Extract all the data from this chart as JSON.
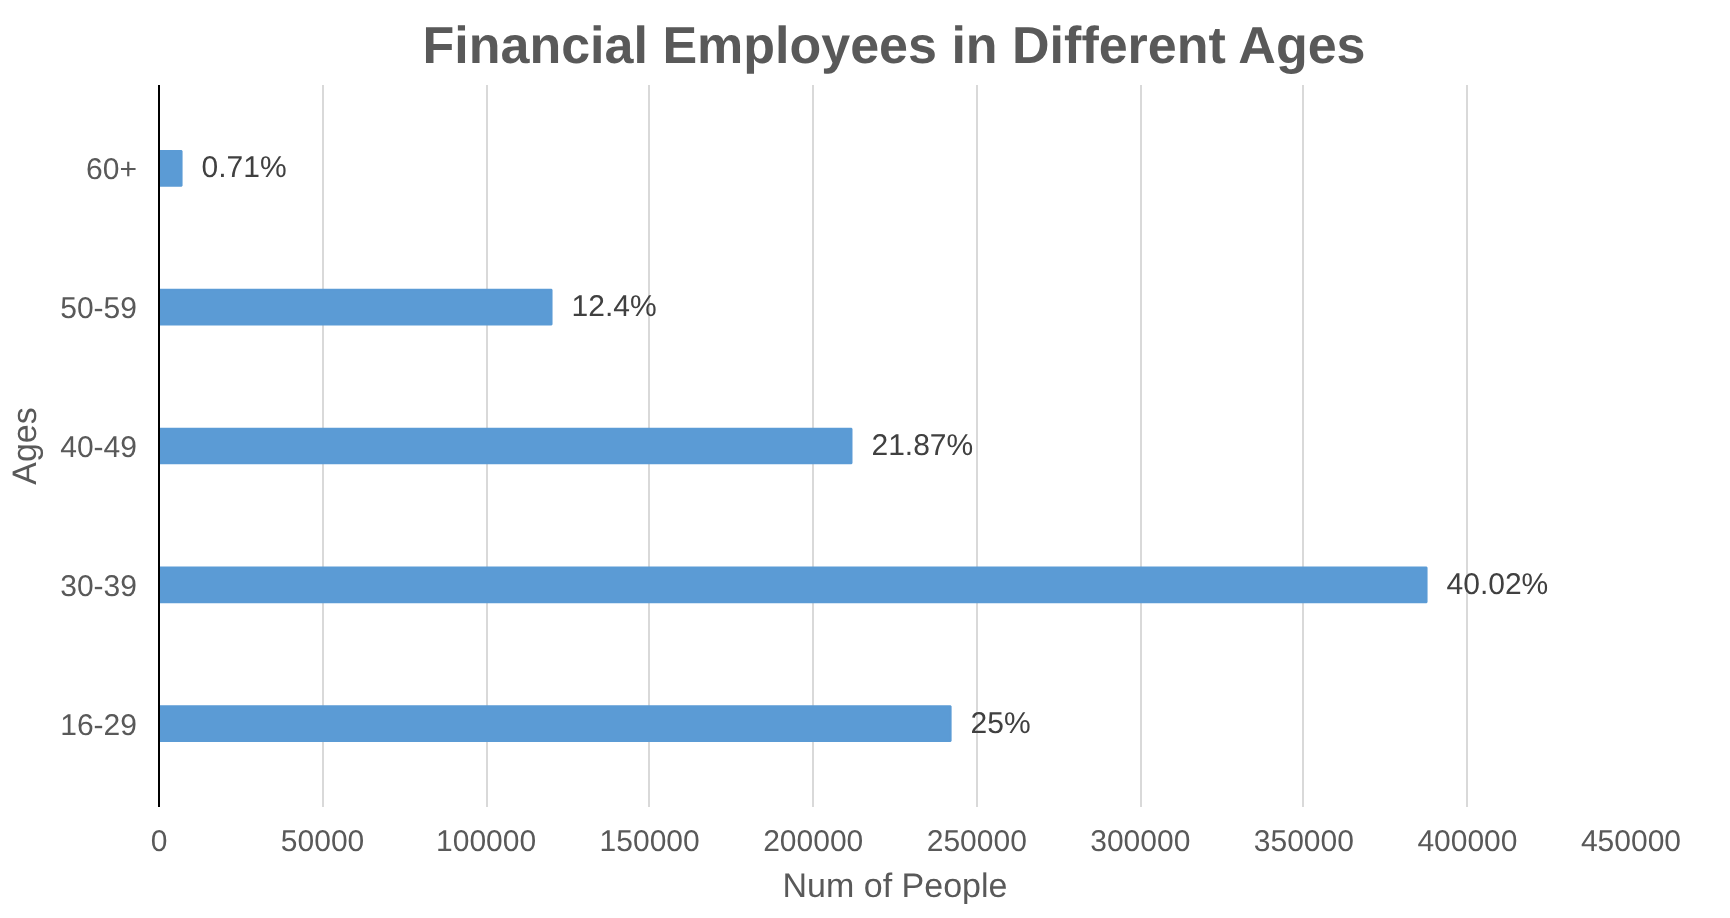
{
  "chart_data": {
    "type": "bar",
    "orientation": "horizontal",
    "title": "Financial Employees in Different Ages",
    "xlabel": "Num of People",
    "ylabel": "Ages",
    "categories": [
      "60+",
      "50-59",
      "40-49",
      "30-39",
      "16-29"
    ],
    "values": [
      6900,
      120000,
      211700,
      387500,
      242000
    ],
    "annotations": [
      {
        "text": "0.71%",
        "x": 6900,
        "y": "60+"
      },
      {
        "text": "12.4%",
        "x": 120000,
        "y": "50-59"
      },
      {
        "text": "21.87%",
        "x": 211700,
        "y": "40-49"
      },
      {
        "text": "40.02%",
        "x": 387500,
        "y": "30-39"
      },
      {
        "text": "25%",
        "x": 242000,
        "y": "16-29"
      }
    ],
    "color": "#5b9bd5",
    "xlim": [
      0,
      450000
    ],
    "xticks": [
      0,
      50000,
      100000,
      150000,
      200000,
      250000,
      300000,
      350000,
      400000,
      450000
    ],
    "grid": "x"
  }
}
